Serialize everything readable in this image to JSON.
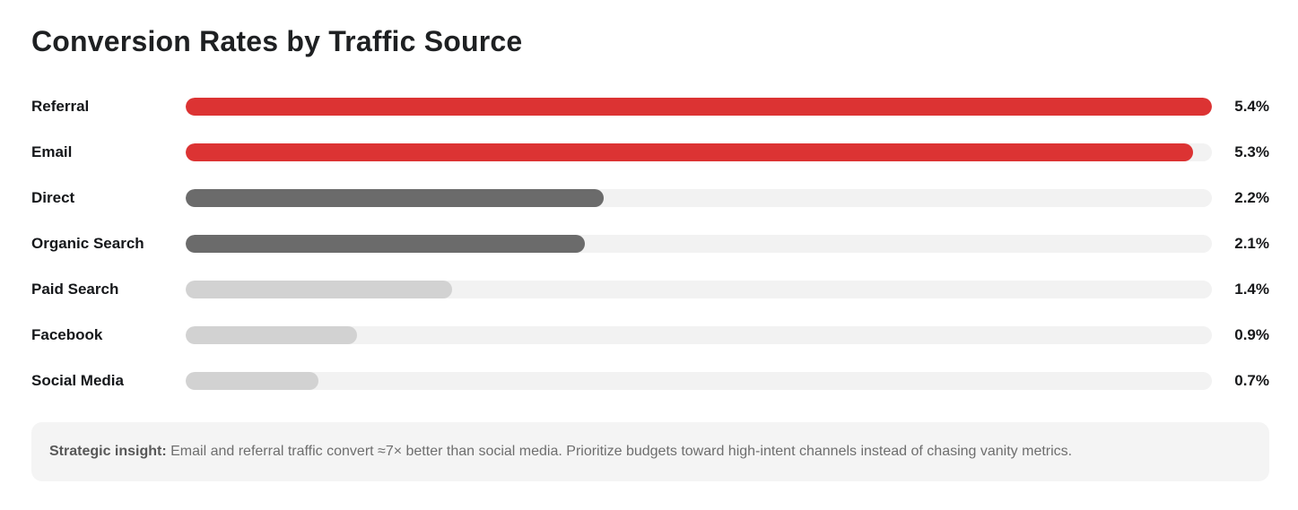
{
  "header": {
    "title": "Conversion Rates by Traffic Source"
  },
  "chart_data": {
    "type": "bar",
    "orientation": "horizontal",
    "title": "Conversion Rates by Traffic Source",
    "categories": [
      "Referral",
      "Email",
      "Direct",
      "Organic Search",
      "Paid Search",
      "Facebook",
      "Social Media"
    ],
    "values": [
      5.4,
      5.3,
      2.2,
      2.1,
      1.4,
      0.9,
      0.7
    ],
    "value_labels": [
      "5.4%",
      "5.3%",
      "2.2%",
      "2.1%",
      "1.4%",
      "0.9%",
      "0.7%"
    ],
    "bar_color_keys": [
      "red",
      "red",
      "dark",
      "dark",
      "light",
      "light",
      "light"
    ],
    "xlabel": "",
    "ylabel": "",
    "xlim": [
      0,
      5.4
    ],
    "grid": false,
    "legend": "none",
    "colors": {
      "red": "#dc3333",
      "dark": "#6b6b6b",
      "light": "#d2d2d2",
      "track": "#f2f2f2"
    }
  },
  "insight": {
    "label": "Strategic insight:",
    "text": " Email and referral traffic convert ≈7× better than social media. Prioritize budgets toward high-intent channels instead of chasing vanity metrics."
  }
}
